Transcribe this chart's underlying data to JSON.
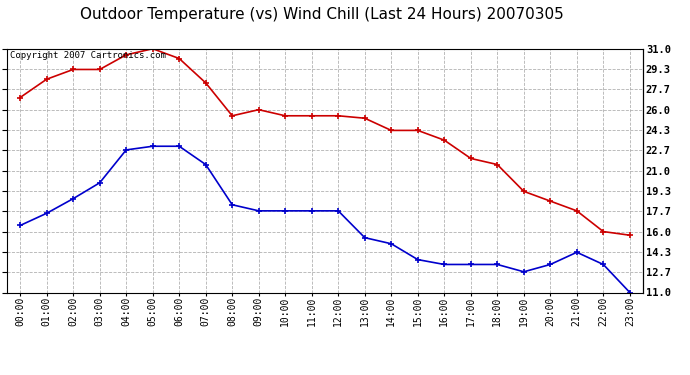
{
  "title": "Outdoor Temperature (vs) Wind Chill (Last 24 Hours) 20070305",
  "copyright_text": "Copyright 2007 Cartronics.com",
  "x_labels": [
    "00:00",
    "01:00",
    "02:00",
    "03:00",
    "04:00",
    "05:00",
    "06:00",
    "07:00",
    "08:00",
    "09:00",
    "10:00",
    "11:00",
    "12:00",
    "13:00",
    "14:00",
    "15:00",
    "16:00",
    "17:00",
    "18:00",
    "19:00",
    "20:00",
    "21:00",
    "22:00",
    "23:00"
  ],
  "temp_red": [
    27.0,
    28.5,
    29.3,
    29.3,
    30.5,
    31.0,
    30.2,
    28.2,
    25.5,
    26.0,
    25.5,
    25.5,
    25.5,
    25.3,
    24.3,
    24.3,
    23.5,
    22.0,
    21.5,
    19.3,
    18.5,
    17.7,
    16.0,
    15.7
  ],
  "wind_blue": [
    16.5,
    17.5,
    18.7,
    20.0,
    22.7,
    23.0,
    23.0,
    21.5,
    18.2,
    17.7,
    17.7,
    17.7,
    17.7,
    15.5,
    15.0,
    13.7,
    13.3,
    13.3,
    13.3,
    12.7,
    13.3,
    14.3,
    13.3,
    11.0
  ],
  "y_ticks": [
    11.0,
    12.7,
    14.3,
    16.0,
    17.7,
    19.3,
    21.0,
    22.7,
    24.3,
    26.0,
    27.7,
    29.3,
    31.0
  ],
  "ylim": [
    11.0,
    31.0
  ],
  "red_color": "#cc0000",
  "blue_color": "#0000cc",
  "grid_color": "#aaaaaa",
  "bg_color": "#ffffff",
  "title_fontsize": 11,
  "copyright_fontsize": 6.5,
  "tick_fontsize": 7,
  "ytick_fontsize": 7.5
}
